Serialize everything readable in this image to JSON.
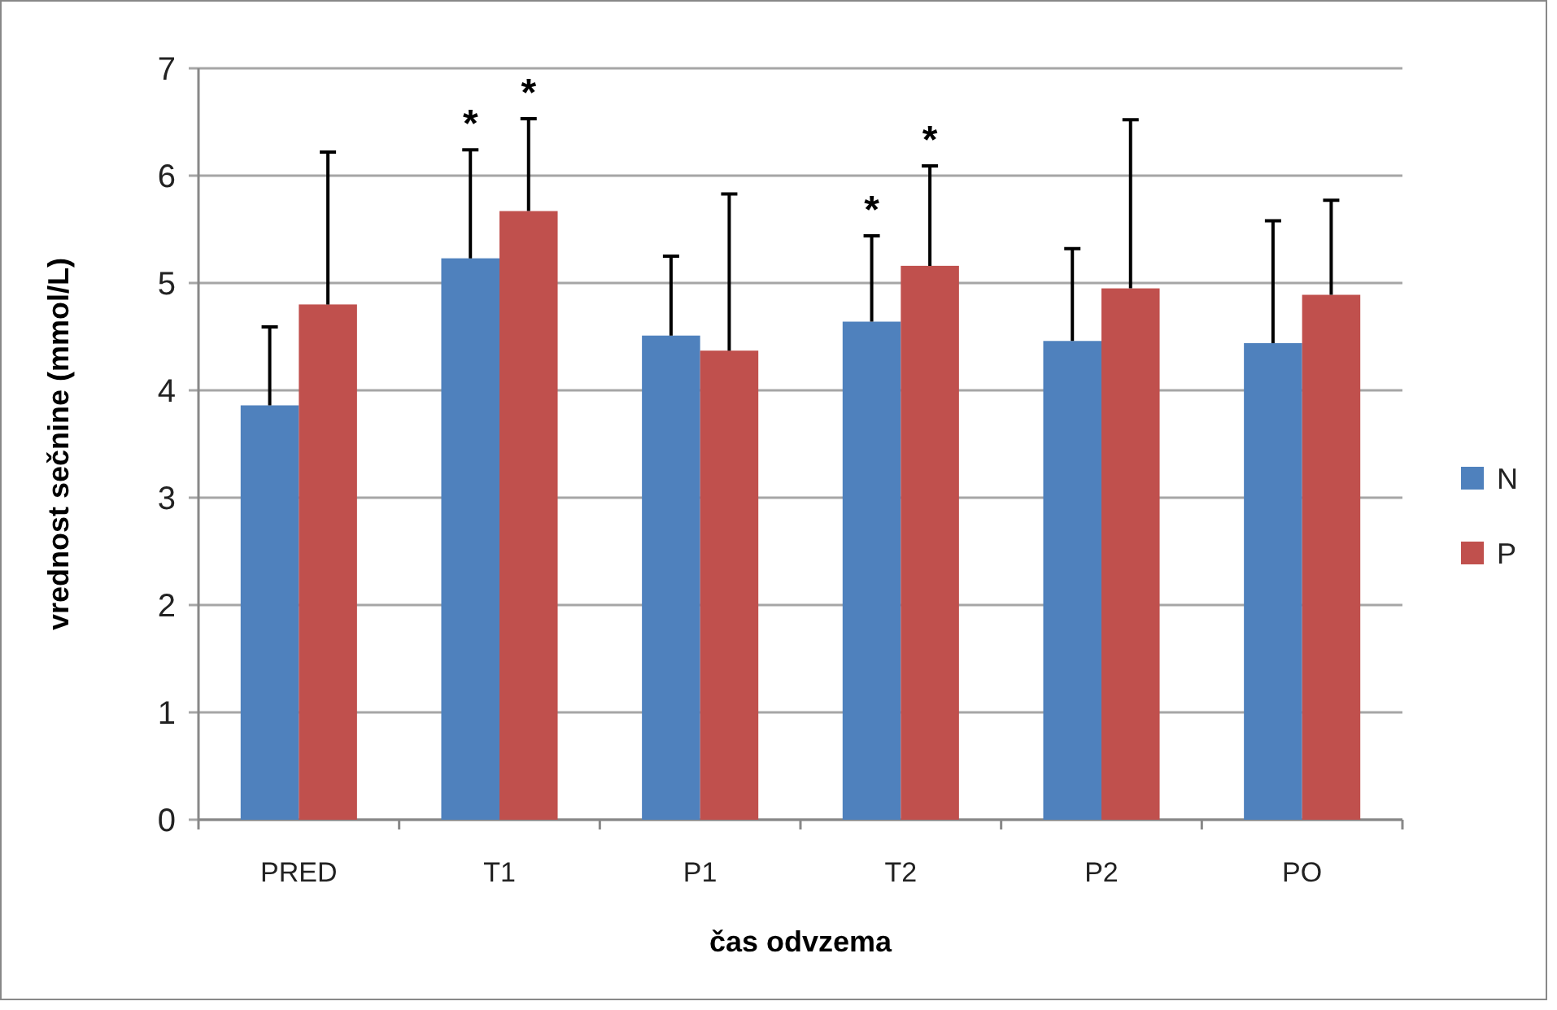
{
  "chart_data": {
    "type": "bar",
    "xlabel": "čas odvzema",
    "ylabel": "vrednost sečnine (mmol/L)",
    "categories": [
      "PRED",
      "T1",
      "P1",
      "T2",
      "P2",
      "PO"
    ],
    "series": [
      {
        "name": "N",
        "color": "#4f81bd",
        "values": [
          3.86,
          5.23,
          4.51,
          4.64,
          4.46,
          4.44
        ],
        "errors": [
          [
            3.86,
            4.59
          ],
          [
            5.23,
            6.24
          ],
          [
            4.51,
            5.25
          ],
          [
            4.64,
            5.44
          ],
          [
            4.46,
            5.32
          ],
          [
            4.44,
            5.58
          ]
        ]
      },
      {
        "name": "P",
        "color": "#c0504d",
        "values": [
          4.8,
          5.67,
          4.37,
          5.16,
          4.95,
          4.89
        ],
        "errors": [
          [
            4.8,
            6.22
          ],
          [
            5.67,
            6.53
          ],
          [
            4.37,
            5.83
          ],
          [
            5.16,
            6.09
          ],
          [
            4.95,
            6.52
          ],
          [
            4.89,
            5.77
          ]
        ]
      }
    ],
    "ylim": [
      0,
      7
    ],
    "yticks": [
      0,
      1,
      2,
      3,
      4,
      5,
      6,
      7
    ],
    "grid": "y",
    "legend": "right",
    "annotations": [
      {
        "text": "*",
        "x": "T1",
        "y": 5.23
      },
      {
        "text": "*",
        "x": "T1",
        "y": 5.67
      },
      {
        "text": "*",
        "x": "T2",
        "y": 4.64
      },
      {
        "text": "*",
        "x": "T2",
        "y": 5.16
      }
    ]
  }
}
